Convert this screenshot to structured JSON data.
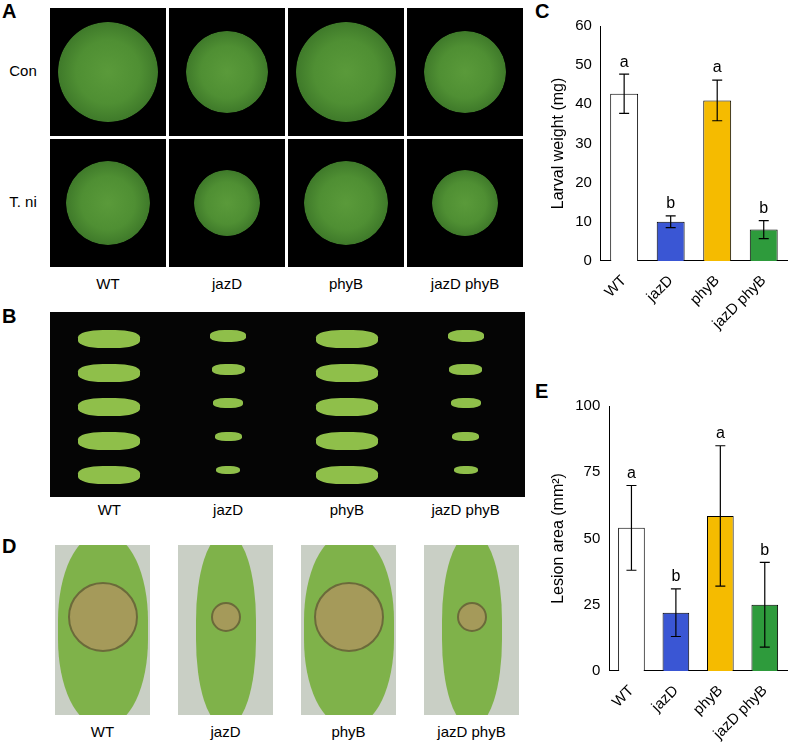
{
  "chart_data": [
    {
      "type": "bar",
      "panel": "C",
      "y_label": "Larval weight (mg)",
      "categories": [
        "WT",
        "jazD",
        "phyB",
        "jazD phyB"
      ],
      "values": [
        42.7,
        10,
        41,
        8
      ],
      "errors": [
        5,
        1.5,
        5.2,
        2.3
      ],
      "annotations": [
        "a",
        "b",
        "a",
        "b"
      ],
      "colors": [
        "#ffffff",
        "#3a56d4",
        "#f5bb00",
        "#2e9b3c"
      ],
      "ylim": [
        0,
        60
      ],
      "yticks": [
        0,
        10,
        20,
        30,
        40,
        50,
        60
      ],
      "grid": false
    },
    {
      "type": "bar",
      "panel": "E",
      "y_label": "Lesion area (mm²)",
      "categories": [
        "WT",
        "jazD",
        "phyB",
        "jazD phyB"
      ],
      "values": [
        54,
        22,
        58.5,
        25
      ],
      "errors": [
        16,
        9,
        26.5,
        16
      ],
      "annotations": [
        "a",
        "b",
        "a",
        "b"
      ],
      "colors": [
        "#ffffff",
        "#3a56d4",
        "#f5bb00",
        "#2e9b3c"
      ],
      "ylim": [
        0,
        100
      ],
      "yticks": [
        0,
        25,
        50,
        75,
        100
      ],
      "grid": false
    }
  ],
  "photo_panels": [
    {
      "panel": "A",
      "row_labels": [
        "Con",
        "T. ni"
      ],
      "column_labels": [
        "WT",
        "jazD",
        "phyB",
        "jazD phyB"
      ]
    },
    {
      "panel": "B",
      "column_labels": [
        "WT",
        "jazD",
        "phyB",
        "jazD phyB"
      ]
    },
    {
      "panel": "D",
      "column_labels": [
        "WT",
        "jazD",
        "phyB",
        "jazD phyB"
      ]
    }
  ]
}
